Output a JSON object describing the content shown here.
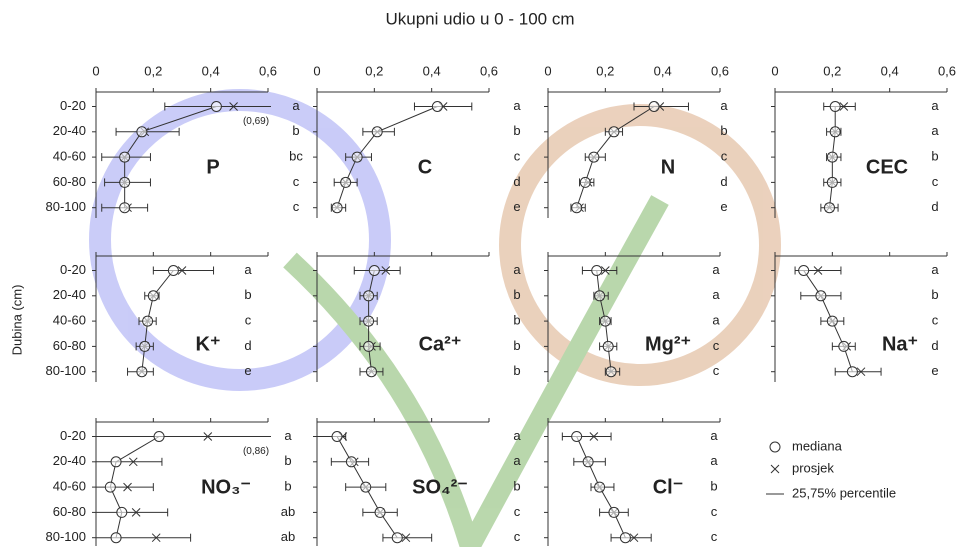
{
  "title": "Ukupni udio u 0 - 100 cm",
  "y_label": "Dubina (cm)",
  "categories": [
    "0-20",
    "20-40",
    "40-60",
    "60-80",
    "80-100"
  ],
  "legend": {
    "median": "mediana",
    "mean": "prosjek",
    "range": "25,75% percentile"
  },
  "chart_data": [
    {
      "type": "dot",
      "label": "P",
      "xlim": [
        0,
        0.6
      ],
      "xticks": [
        0,
        {
          "value": 0.2,
          "label": "0,2"
        },
        {
          "value": 0.4,
          "label": "0,4"
        },
        {
          "value": 0.6,
          "label": "0,6"
        }
      ],
      "median": [
        0.42,
        0.16,
        0.1,
        0.1,
        0.1
      ],
      "mean": [
        0.48,
        0.17,
        0.1,
        0.1,
        0.11
      ],
      "p25": [
        0.24,
        0.07,
        0.02,
        0.03,
        0.02
      ],
      "p75": [
        0.69,
        0.29,
        0.19,
        0.19,
        0.18
      ],
      "letters": [
        "a",
        "b",
        "bc",
        "c",
        "c"
      ],
      "annotation": "(0,69)"
    },
    {
      "type": "dot",
      "label": "C",
      "xlim": [
        0,
        0.6
      ],
      "xticks": [
        0,
        {
          "value": 0.2,
          "label": "0,2"
        },
        {
          "value": 0.4,
          "label": "0,4"
        },
        {
          "value": 0.6,
          "label": "0,6"
        }
      ],
      "median": [
        0.42,
        0.21,
        0.14,
        0.1,
        0.07
      ],
      "mean": [
        0.44,
        0.21,
        0.14,
        0.1,
        0.07
      ],
      "p25": [
        0.34,
        0.16,
        0.1,
        0.06,
        0.05
      ],
      "p75": [
        0.54,
        0.27,
        0.19,
        0.14,
        0.1
      ],
      "letters": [
        "a",
        "b",
        "c",
        "d",
        "e"
      ]
    },
    {
      "type": "dot",
      "label": "N",
      "xlim": [
        0,
        0.6
      ],
      "xticks": [
        0,
        {
          "value": 0.2,
          "label": "0,2"
        },
        {
          "value": 0.4,
          "label": "0,4"
        },
        {
          "value": 0.6,
          "label": "0,6"
        }
      ],
      "median": [
        0.37,
        0.23,
        0.16,
        0.13,
        0.1
      ],
      "mean": [
        0.39,
        0.23,
        0.16,
        0.14,
        0.11
      ],
      "p25": [
        0.3,
        0.2,
        0.13,
        0.11,
        0.08
      ],
      "p75": [
        0.49,
        0.26,
        0.2,
        0.16,
        0.13
      ],
      "letters": [
        "a",
        "b",
        "c",
        "d",
        "e"
      ]
    },
    {
      "type": "dot",
      "label": "CEC",
      "xlim": [
        0,
        0.6
      ],
      "xticks": [
        0,
        {
          "value": 0.2,
          "label": "0,2"
        },
        {
          "value": 0.4,
          "label": "0,4"
        },
        {
          "value": 0.6,
          "label": "0,6"
        }
      ],
      "median": [
        0.21,
        0.21,
        0.2,
        0.2,
        0.19
      ],
      "mean": [
        0.24,
        0.21,
        0.2,
        0.2,
        0.19
      ],
      "p25": [
        0.17,
        0.18,
        0.18,
        0.17,
        0.16
      ],
      "p75": [
        0.28,
        0.23,
        0.23,
        0.23,
        0.22
      ],
      "letters": [
        "a",
        "a",
        "b",
        "c",
        "d"
      ]
    },
    {
      "type": "dot",
      "label": "K⁺",
      "xlim": [
        0,
        0.6
      ],
      "xticks": [
        0,
        0.2,
        0.4,
        0.6
      ],
      "median": [
        0.27,
        0.2,
        0.18,
        0.17,
        0.16
      ],
      "mean": [
        0.3,
        0.2,
        0.18,
        0.17,
        0.16
      ],
      "p25": [
        0.2,
        0.17,
        0.15,
        0.14,
        0.11
      ],
      "p75": [
        0.41,
        0.22,
        0.21,
        0.2,
        0.2
      ],
      "letters": [
        "a",
        "b",
        "c",
        "d",
        "e"
      ]
    },
    {
      "type": "dot",
      "label": "Ca²⁺",
      "xlim": [
        0,
        0.6
      ],
      "xticks": [
        0,
        0.2,
        0.4,
        0.6
      ],
      "median": [
        0.2,
        0.18,
        0.18,
        0.18,
        0.19
      ],
      "mean": [
        0.24,
        0.18,
        0.18,
        0.19,
        0.19
      ],
      "p25": [
        0.13,
        0.15,
        0.15,
        0.15,
        0.15
      ],
      "p75": [
        0.29,
        0.21,
        0.21,
        0.22,
        0.23
      ],
      "letters": [
        "a",
        "b",
        "b",
        "b",
        "b"
      ]
    },
    {
      "type": "dot",
      "label": "Mg²⁺",
      "xlim": [
        0,
        0.6
      ],
      "xticks": [
        0,
        0.2,
        0.4,
        0.6
      ],
      "median": [
        0.17,
        0.18,
        0.2,
        0.21,
        0.22
      ],
      "mean": [
        0.2,
        0.18,
        0.2,
        0.21,
        0.22
      ],
      "p25": [
        0.12,
        0.16,
        0.18,
        0.18,
        0.2
      ],
      "p75": [
        0.24,
        0.21,
        0.22,
        0.24,
        0.25
      ],
      "letters": [
        "a",
        "a",
        "a",
        "c",
        "c"
      ]
    },
    {
      "type": "dot",
      "label": "Na⁺",
      "xlim": [
        0,
        0.6
      ],
      "xticks": [
        0,
        0.2,
        0.4,
        0.6
      ],
      "median": [
        0.1,
        0.16,
        0.2,
        0.24,
        0.27
      ],
      "mean": [
        0.15,
        0.16,
        0.2,
        0.25,
        0.3
      ],
      "p25": [
        0.07,
        0.09,
        0.16,
        0.2,
        0.21
      ],
      "p75": [
        0.23,
        0.23,
        0.24,
        0.28,
        0.37
      ],
      "letters": [
        "a",
        "b",
        "c",
        "d",
        "e"
      ]
    },
    {
      "type": "dot",
      "label": "NO₃⁻",
      "xlim": [
        0,
        0.6
      ],
      "xticks": [
        0,
        0.2,
        0.4,
        0.6
      ],
      "median": [
        0.22,
        0.07,
        0.05,
        0.09,
        0.07
      ],
      "mean": [
        0.39,
        0.13,
        0.11,
        0.14,
        0.21
      ],
      "p25": [
        0,
        0,
        0,
        0,
        0
      ],
      "p75": [
        0.86,
        0.23,
        0.2,
        0.25,
        0.33
      ],
      "letters": [
        "a",
        "b",
        "b",
        "ab",
        "ab"
      ],
      "annotation": "(0,86)"
    },
    {
      "type": "dot",
      "label": "SO₄²⁻",
      "xlim": [
        0,
        0.6
      ],
      "xticks": [
        0,
        0.2,
        0.4,
        0.6
      ],
      "median": [
        0.07,
        0.12,
        0.17,
        0.22,
        0.28
      ],
      "mean": [
        0.09,
        0.13,
        0.17,
        0.22,
        0.31
      ],
      "p25": [
        0,
        0.05,
        0.1,
        0.16,
        0.23
      ],
      "p75": [
        0.1,
        0.18,
        0.24,
        0.28,
        0.4
      ],
      "letters": [
        "a",
        "a",
        "b",
        "c",
        "c"
      ]
    },
    {
      "type": "dot",
      "label": "Cl⁻",
      "xlim": [
        0,
        0.6
      ],
      "xticks": [
        0,
        0.2,
        0.4,
        0.6
      ],
      "median": [
        0.1,
        0.14,
        0.18,
        0.23,
        0.27
      ],
      "mean": [
        0.16,
        0.14,
        0.18,
        0.23,
        0.3
      ],
      "p25": [
        0.05,
        0.09,
        0.15,
        0.18,
        0.22
      ],
      "p75": [
        0.22,
        0.2,
        0.23,
        0.28,
        0.36
      ],
      "letters": [
        "a",
        "a",
        "b",
        "c",
        "c"
      ]
    }
  ]
}
